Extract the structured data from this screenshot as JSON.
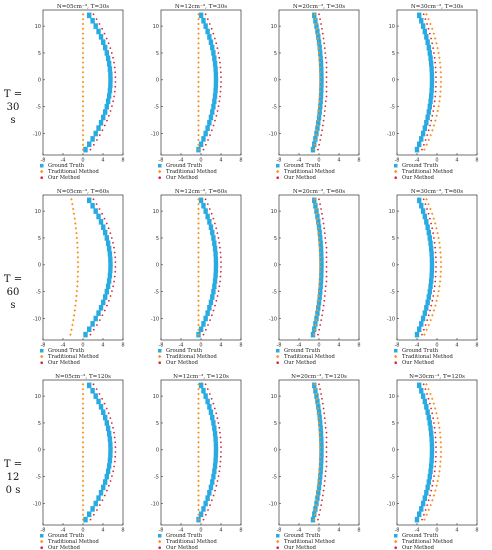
{
  "row_labels": [
    {
      "lines": [
        "T =",
        "30",
        "s"
      ]
    },
    {
      "lines": [
        "T =",
        "60",
        "s"
      ]
    },
    {
      "lines": [
        "T =",
        "12",
        "0 s"
      ]
    }
  ],
  "colors": {
    "ground_truth": "#29abe2",
    "traditional": "#f7931e",
    "our_method": "#d6263a"
  },
  "chart_data": [
    {
      "type": "scatter",
      "title": "N=05cm⁻³, T=30s"
    },
    {
      "type": "scatter",
      "title": "N=12cm⁻³, T=30s"
    },
    {
      "type": "scatter",
      "title": "N=20cm⁻³, T=30s"
    },
    {
      "type": "scatter",
      "title": "N=30cm⁻³, T=30s"
    },
    {
      "type": "scatter",
      "title": "N=05cm⁻³, T=60s"
    },
    {
      "type": "scatter",
      "title": "N=12cm⁻³, T=60s"
    },
    {
      "type": "scatter",
      "title": "N=20cm⁻³, T=60s"
    },
    {
      "type": "scatter",
      "title": "N=30cm⁻³, T=60s"
    },
    {
      "type": "scatter",
      "title": "N=05cm⁻³, T=120s"
    },
    {
      "type": "scatter",
      "title": "N=12cm⁻³, T=120s"
    },
    {
      "type": "scatter",
      "title": "N=20cm⁻³, T=120s"
    },
    {
      "type": "scatter",
      "title": "N=30cm⁻³, T=120s"
    }
  ],
  "shared": {
    "xlim": [
      -8,
      8
    ],
    "ylim": [
      -14,
      13
    ],
    "xticks": [
      -8,
      -4,
      0,
      4,
      8
    ],
    "yticks": [
      -10,
      -5,
      0,
      5,
      10
    ],
    "series": [
      {
        "name": "Ground Truth",
        "marker": "square"
      },
      {
        "name": "Traditional Method",
        "marker": "diamond"
      },
      {
        "name": "Our Method",
        "marker": "dot"
      }
    ],
    "profiles": {
      "ground_truth": {
        "x_at_center": 5.5,
        "x_at_ends": 0.5
      },
      "our_method": {
        "x_at_center": 6.5,
        "x_at_ends": 1.5
      },
      "traditional_row1_col0": {
        "x": 0
      },
      "traditional_row2_col0": {
        "x_at_center": -1.0,
        "x_at_ends": -2.5
      }
    }
  }
}
